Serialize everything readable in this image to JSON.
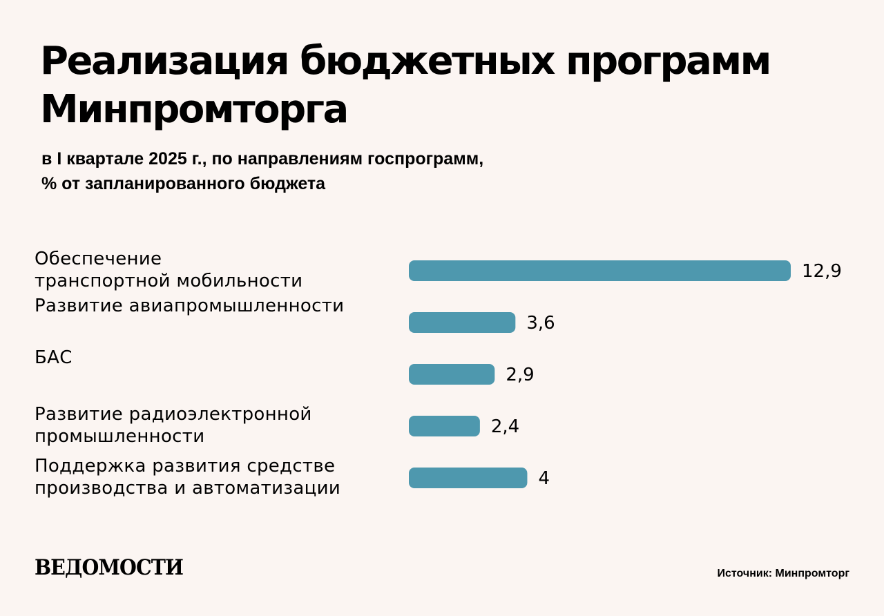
{
  "title": "Реализация бюджетных программ Минпромторга",
  "subtitle_line1": "в I квартале 2025 г., по направлениям госпрограмм,",
  "subtitle_line2": "% от запланированного бюджета",
  "source": "Источник: Минпромторг",
  "logo": "ВЕДОМОСТИ",
  "colors": {
    "background": "#fbf5f2",
    "bar": "#4e98ae"
  },
  "chart_data": {
    "type": "bar",
    "orientation": "horizontal",
    "unit": "%",
    "categories": [
      [
        "Обеспечение",
        "транспортной мобильности"
      ],
      [
        "Развитие авиапромышленности"
      ],
      [
        "БАС"
      ],
      [
        "Развитие радиоэлектронной",
        "промышленности"
      ],
      [
        "Поддержка развития средстве",
        "производства и автоматизации"
      ]
    ],
    "values": [
      12.9,
      3.6,
      2.9,
      2.4,
      4
    ],
    "value_labels": [
      "12,9",
      "3,6",
      "2,9",
      "2,4",
      "4"
    ],
    "xlim": [
      0,
      12.9
    ],
    "grid": false,
    "legend": false
  }
}
